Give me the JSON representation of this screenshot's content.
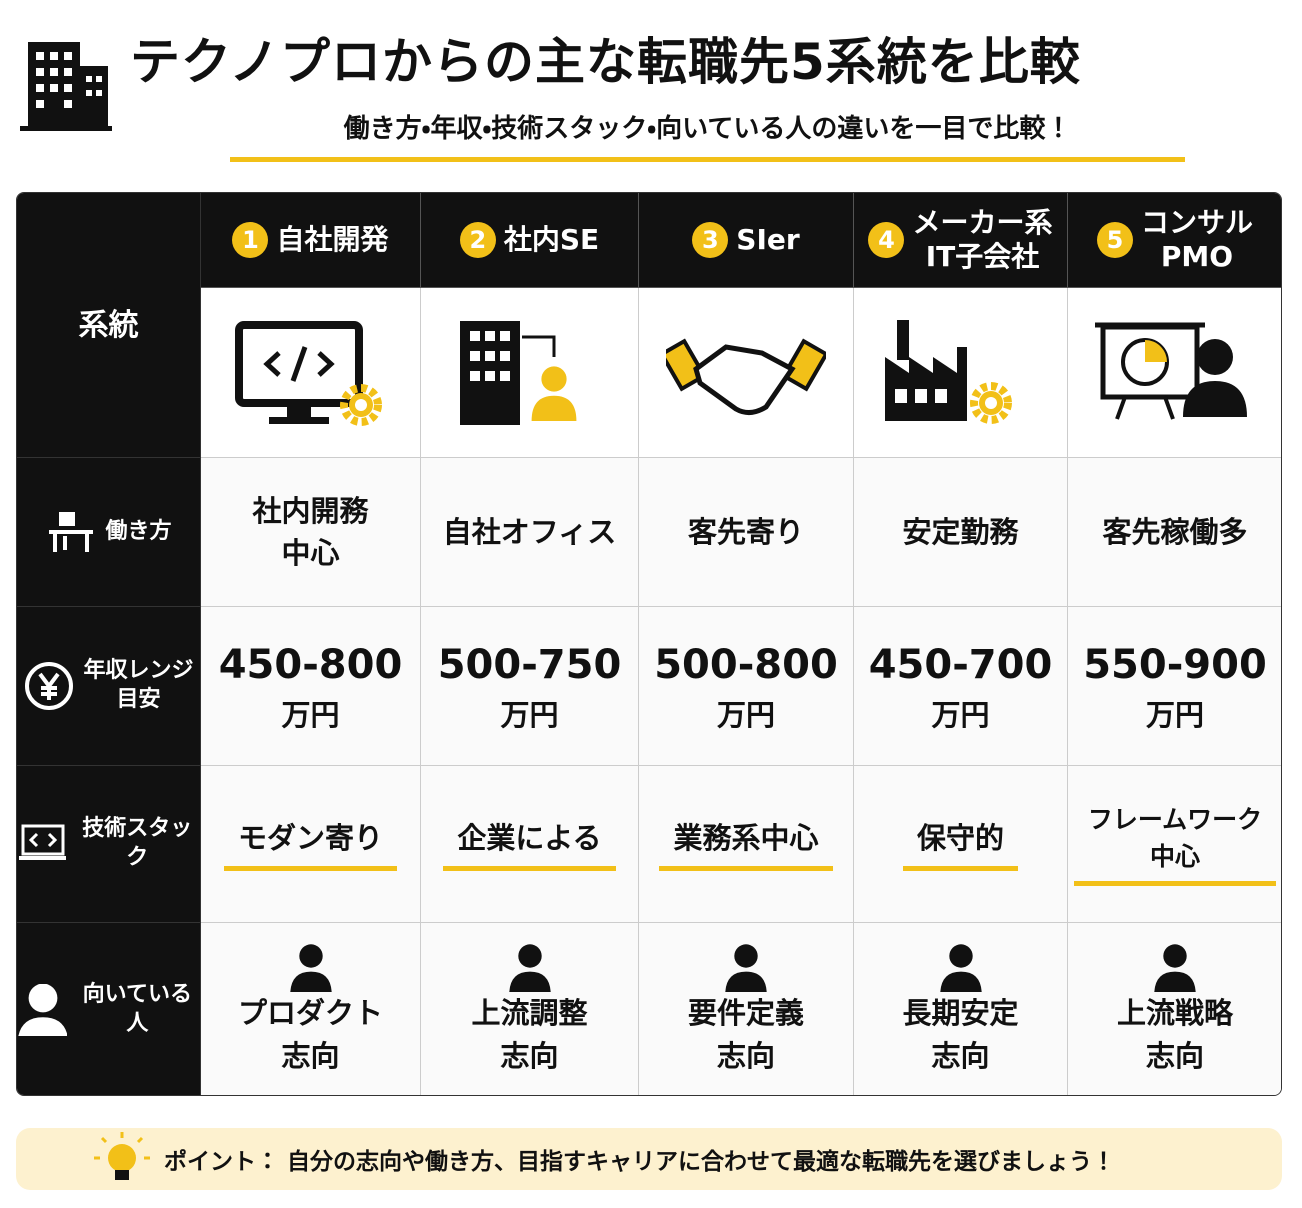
{
  "header": {
    "title": "テクノプロからの主な転職先5系統を比較",
    "subtitle": "働き方・年収・技術スタック・向いている人の違いを一目で比較！"
  },
  "table": {
    "corner": "系統",
    "columns": [
      {
        "number": 1,
        "name": [
          "自社開発"
        ]
      },
      {
        "number": 2,
        "name": [
          "社内SE"
        ]
      },
      {
        "number": 3,
        "name": [
          "SIer"
        ]
      },
      {
        "number": 4,
        "name": [
          "メーカー系",
          "IT子会社"
        ]
      },
      {
        "number": 5,
        "name": [
          "コンサル",
          "PMO"
        ]
      }
    ],
    "rows": [
      {
        "label": [
          "働き方"
        ],
        "cells": [
          [
            "社内開務",
            "中心"
          ],
          [
            "自社オフィス"
          ],
          [
            "客先寄り"
          ],
          [
            "安定勤務"
          ],
          [
            "客先稼働多"
          ]
        ]
      },
      {
        "label": [
          "年収レンジ",
          "目安"
        ],
        "cells": [
          [
            "450-800",
            "万円"
          ],
          [
            "500-750",
            "万円"
          ],
          [
            "500-800",
            "万円"
          ],
          [
            "450-700",
            "万円"
          ],
          [
            "550-900",
            "万円"
          ]
        ]
      },
      {
        "label": [
          "技術スタック"
        ],
        "cells": [
          [
            "モダン寄り"
          ],
          [
            "企業による"
          ],
          [
            "業務系中心"
          ],
          [
            "保守的"
          ],
          [
            "フレームワーク",
            "中心"
          ]
        ]
      },
      {
        "label": [
          "向いている人"
        ],
        "cells": [
          [
            "プロダクト",
            "志向"
          ],
          [
            "上流調整",
            "志向"
          ],
          [
            "要件定義",
            "志向"
          ],
          [
            "長期安定",
            "志向"
          ],
          [
            "上流戦略",
            "志向"
          ]
        ]
      }
    ]
  },
  "footer": {
    "label": "ポイント：",
    "text": "自分の志向や働き方、目指すキャリアに合わせて最適な転職先を選びましょう！"
  }
}
